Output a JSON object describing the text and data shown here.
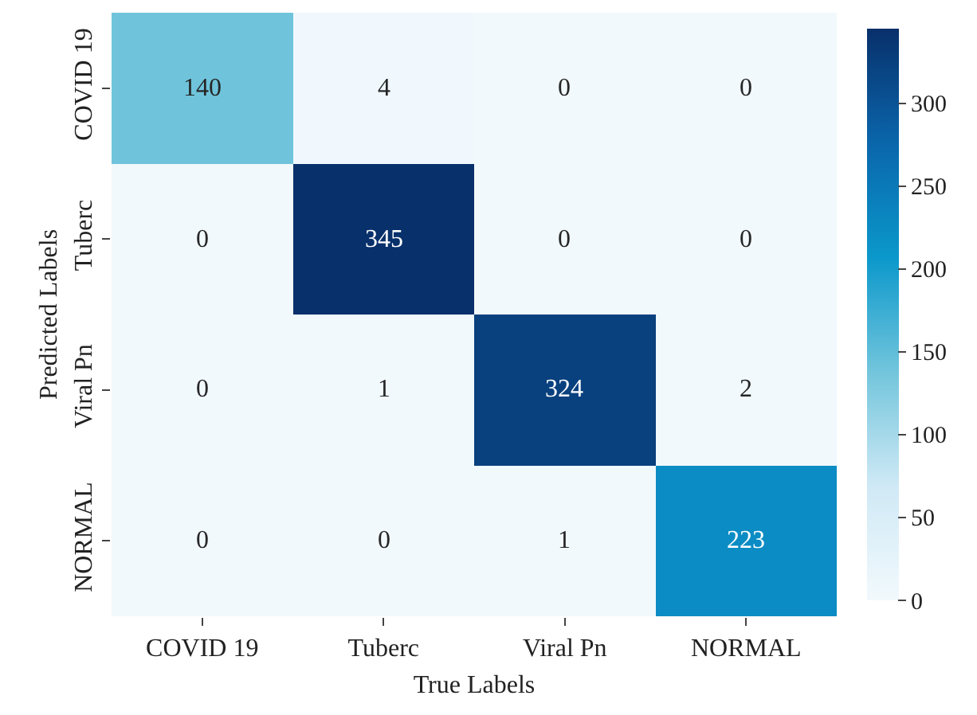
{
  "chart_data": {
    "type": "heatmap",
    "xlabel": "True Labels",
    "ylabel": "Predicted Labels",
    "categories": [
      "COVID 19",
      "Tuberc",
      "Viral Pn",
      "NORMAL"
    ],
    "y_categories": [
      "COVID 19",
      "Tuberc",
      "Viral Pn",
      "NORMAL"
    ],
    "cells": [
      [
        140,
        4,
        0,
        0
      ],
      [
        0,
        345,
        0,
        0
      ],
      [
        0,
        1,
        324,
        2
      ],
      [
        0,
        0,
        1,
        223
      ]
    ],
    "clim": [
      0,
      345
    ],
    "cticks": [
      0,
      50,
      100,
      150,
      200,
      250,
      300
    ],
    "data_labels": true
  }
}
